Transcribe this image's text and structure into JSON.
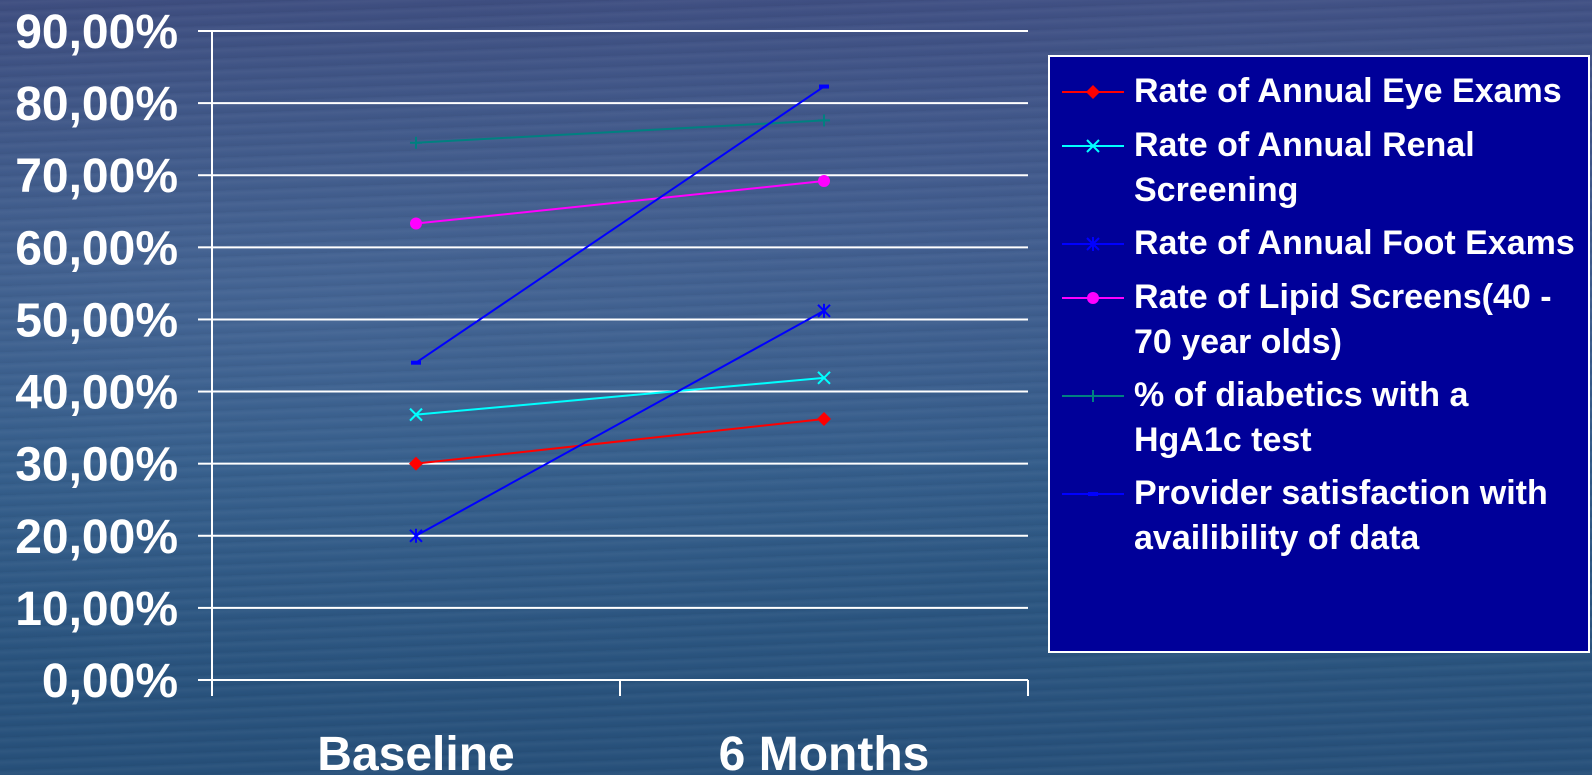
{
  "chart_data": {
    "type": "line",
    "categories": [
      "Baseline",
      "6 Months"
    ],
    "y_ticks": [
      "0,00%",
      "10,00%",
      "20,00%",
      "30,00%",
      "40,00%",
      "50,00%",
      "60,00%",
      "70,00%",
      "80,00%",
      "90,00%"
    ],
    "ylim": [
      0,
      90
    ],
    "grid": true,
    "legend_position": "right",
    "series": [
      {
        "name": "Rate of Annual Eye Exams",
        "values": [
          30,
          36.2
        ],
        "color": "#ff0000",
        "marker": "diamond"
      },
      {
        "name": "Rate of Annual Renal Screening",
        "values": [
          36.8,
          41.9
        ],
        "color": "#00ffff",
        "marker": "x"
      },
      {
        "name": "Rate of Annual Foot Exams",
        "values": [
          20,
          51.2
        ],
        "color": "#0000ff",
        "marker": "asterisk"
      },
      {
        "name": "Rate of Lipid Screens(40 - 70 year olds)",
        "values": [
          63.3,
          69.2
        ],
        "color": "#ff00ff",
        "marker": "circle"
      },
      {
        "name": "% of diabetics with a HgA1c test",
        "values": [
          74.5,
          77.6
        ],
        "color": "#008080",
        "marker": "plus"
      },
      {
        "name": "Provider satisfaction with availibility of data",
        "values": [
          44,
          82.3
        ],
        "color": "#0000ff",
        "marker": "dash"
      }
    ]
  }
}
